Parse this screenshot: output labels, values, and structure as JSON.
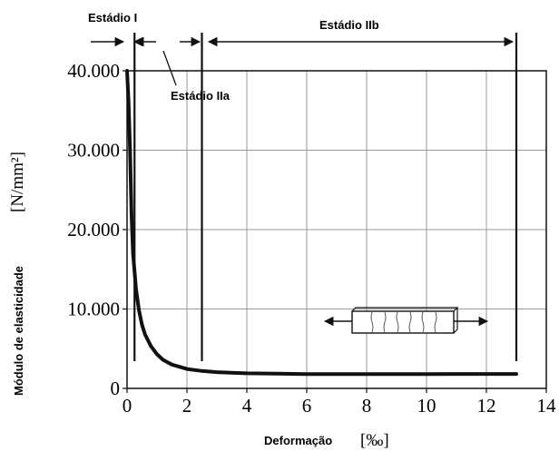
{
  "chart_data": {
    "type": "line",
    "xlabel": "Deformação",
    "xunit": "[‰]",
    "ylabel": "Módulo de elasticidade",
    "yunit": "[N/mm²]",
    "xlim": [
      0,
      14
    ],
    "ylim": [
      0,
      40000
    ],
    "x_ticks": [
      0,
      2,
      4,
      6,
      8,
      10,
      12,
      14
    ],
    "x_tick_labels": [
      "0",
      "2",
      "4",
      "6",
      "8",
      "10",
      "12",
      "14"
    ],
    "y_ticks": [
      0,
      10000,
      20000,
      30000,
      40000
    ],
    "y_tick_labels": [
      "0",
      "10.000",
      "20.000",
      "30.000",
      "40.000"
    ],
    "grid": true,
    "series": [
      {
        "points": [
          [
            0.0,
            40000
          ],
          [
            0.05,
            36000
          ],
          [
            0.1,
            30000
          ],
          [
            0.15,
            22000
          ],
          [
            0.2,
            17000
          ],
          [
            0.3,
            12500
          ],
          [
            0.4,
            9800
          ],
          [
            0.5,
            8000
          ],
          [
            0.6,
            6800
          ],
          [
            0.8,
            5300
          ],
          [
            1.0,
            4300
          ],
          [
            1.2,
            3600
          ],
          [
            1.5,
            3000
          ],
          [
            2.0,
            2450
          ],
          [
            2.5,
            2200
          ],
          [
            3.0,
            2050
          ],
          [
            4.0,
            1900
          ],
          [
            5.0,
            1850
          ],
          [
            6.0,
            1800
          ],
          [
            8.0,
            1800
          ],
          [
            10.0,
            1800
          ],
          [
            12.0,
            1820
          ],
          [
            13.0,
            1820
          ]
        ],
        "color": "#111111"
      }
    ],
    "stages": [
      {
        "label": "Estádio I",
        "from": 0.0,
        "to": 0.25
      },
      {
        "label": "Estádio IIa",
        "from": 0.25,
        "to": 2.5
      },
      {
        "label": "Estádio IIb",
        "from": 2.5,
        "to": 13.0
      }
    ],
    "stage_boundaries": [
      0.25,
      2.5,
      13.0
    ],
    "inset": "tension-specimen-icon"
  }
}
